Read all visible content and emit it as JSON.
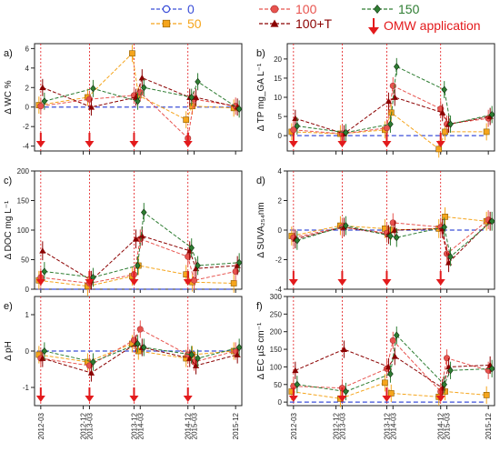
{
  "legend": {
    "items": [
      {
        "label": "0",
        "color": "#3b4fd8",
        "marker": "circle-open",
        "line": "dashed"
      },
      {
        "label": "50",
        "color": "#f5a51c",
        "marker": "square",
        "line": "dashed"
      },
      {
        "label": "100",
        "color": "#e8534e",
        "marker": "circle",
        "line": "dashed"
      },
      {
        "label": "100+T",
        "color": "#8b0000",
        "marker": "triangle",
        "line": "dashed"
      },
      {
        "label": "150",
        "color": "#2e7d32",
        "marker": "diamond",
        "line": "dashed"
      }
    ],
    "arrow_label": "OMW application",
    "arrow_color": "#e31a1c"
  },
  "chart_data": [
    {
      "type": "line",
      "panel": "a)",
      "ylabel": "Δ WC %",
      "ylim": [
        -4.5,
        6.5
      ],
      "yticks": [
        -4,
        -2,
        0,
        2,
        4,
        6
      ],
      "x_categories": [
        "2012-03",
        "2013-03",
        "2013-12",
        "2014-03",
        "2014-12",
        "2015-03",
        "2015-12"
      ],
      "series": [
        {
          "name": "0",
          "values": [
            0,
            0,
            0,
            0,
            0,
            0,
            0
          ]
        },
        {
          "name": "50",
          "values": [
            0.2,
            1.0,
            5.5,
            1.2,
            -1.3,
            0.1,
            -0.1
          ]
        },
        {
          "name": "100",
          "values": [
            0.1,
            0.8,
            1.2,
            1.5,
            -3.2,
            0.8,
            0.1
          ]
        },
        {
          "name": "100+T",
          "values": [
            2.0,
            0.0,
            1.0,
            3.0,
            1.0,
            1.0,
            0.0
          ]
        },
        {
          "name": "150",
          "values": [
            0.6,
            1.9,
            0.6,
            2.0,
            1.0,
            2.6,
            -0.2
          ]
        }
      ]
    },
    {
      "type": "line",
      "panel": "b)",
      "ylabel": "Δ TP mg_GA L⁻¹",
      "ylim": [
        -4,
        24
      ],
      "yticks": [
        0,
        5,
        10,
        15,
        20
      ],
      "x_categories": [
        "2012-03",
        "2013-03",
        "2013-12",
        "2014-03",
        "2014-12",
        "2015-03",
        "2015-12"
      ],
      "series": [
        {
          "name": "0",
          "values": [
            0,
            0,
            0,
            0,
            0,
            0,
            0
          ]
        },
        {
          "name": "50",
          "values": [
            1.0,
            0.5,
            1.5,
            6.0,
            -3.5,
            1.0,
            1.0
          ]
        },
        {
          "name": "100",
          "values": [
            1.5,
            0.5,
            2.0,
            13.0,
            7.0,
            3.0,
            4.5
          ]
        },
        {
          "name": "100+T",
          "values": [
            4.5,
            0.5,
            9.0,
            10.0,
            6.0,
            3.0,
            5.0
          ]
        },
        {
          "name": "150",
          "values": [
            2.5,
            0.8,
            3.0,
            18.0,
            12.0,
            3.0,
            5.5
          ]
        }
      ]
    },
    {
      "type": "line",
      "panel": "c)",
      "ylabel": "Δ DOC mg L⁻¹",
      "ylim": [
        0,
        200
      ],
      "yticks": [
        0,
        50,
        100,
        150,
        200
      ],
      "x_categories": [
        "2012-03",
        "2013-03",
        "2013-12",
        "2014-03",
        "2014-12",
        "2015-03",
        "2015-12"
      ],
      "series": [
        {
          "name": "0",
          "values": [
            0,
            0,
            0,
            0,
            0,
            0,
            0
          ]
        },
        {
          "name": "50",
          "values": [
            15,
            5,
            22,
            40,
            25,
            12,
            10
          ]
        },
        {
          "name": "100",
          "values": [
            20,
            10,
            25,
            85,
            55,
            15,
            30
          ]
        },
        {
          "name": "100+T",
          "values": [
            65,
            15,
            85,
            90,
            65,
            35,
            40
          ]
        },
        {
          "name": "150",
          "values": [
            30,
            20,
            40,
            130,
            70,
            40,
            45
          ]
        }
      ]
    },
    {
      "type": "line",
      "panel": "d)",
      "ylabel": "Δ SUVA₂₅₄nm",
      "ylim": [
        -4,
        4
      ],
      "yticks": [
        -4,
        -2,
        0,
        2,
        4
      ],
      "x_categories": [
        "2012-03",
        "2013-03",
        "2013-12",
        "2014-03",
        "2014-12",
        "2015-03",
        "2015-12"
      ],
      "series": [
        {
          "name": "0",
          "values": [
            0,
            0,
            0,
            0,
            0,
            0,
            0
          ]
        },
        {
          "name": "50",
          "values": [
            -0.4,
            0.3,
            0.1,
            0.0,
            0.1,
            0.9,
            0.6
          ]
        },
        {
          "name": "100",
          "values": [
            -0.5,
            0.2,
            -0.2,
            0.5,
            0.2,
            -1.6,
            0.7
          ]
        },
        {
          "name": "100+T",
          "values": [
            -0.6,
            0.2,
            -0.3,
            0.0,
            0.1,
            -2.2,
            0.6
          ]
        },
        {
          "name": "150",
          "values": [
            -0.7,
            0.3,
            -0.4,
            -0.5,
            0.2,
            -1.8,
            0.6
          ]
        }
      ]
    },
    {
      "type": "line",
      "panel": "e)",
      "ylabel": "Δ pH",
      "ylim": [
        -1.5,
        1.5
      ],
      "yticks": [
        -1,
        0,
        1
      ],
      "x_categories": [
        "2012-03",
        "2013-03",
        "2013-12",
        "2014-03",
        "2014-12",
        "2015-03",
        "2015-12"
      ],
      "series": [
        {
          "name": "0",
          "values": [
            0,
            0,
            0,
            0,
            0,
            0,
            0
          ]
        },
        {
          "name": "50",
          "values": [
            -0.1,
            -0.3,
            0.2,
            0.0,
            -0.2,
            -0.1,
            0.0
          ]
        },
        {
          "name": "100",
          "values": [
            -0.2,
            -0.4,
            0.3,
            0.6,
            -0.1,
            -0.3,
            0.0
          ]
        },
        {
          "name": "100+T",
          "values": [
            -0.2,
            -0.6,
            0.2,
            0.1,
            -0.2,
            -0.4,
            -0.1
          ]
        },
        {
          "name": "150",
          "values": [
            0.0,
            -0.3,
            0.2,
            0.1,
            -0.1,
            -0.2,
            0.1
          ]
        }
      ]
    },
    {
      "type": "line",
      "panel": "f)",
      "ylabel": "Δ EC µS cm⁻¹",
      "ylim": [
        -10,
        300
      ],
      "yticks": [
        0,
        50,
        100,
        150,
        200,
        250,
        300
      ],
      "x_categories": [
        "2012-03",
        "2013-03",
        "2013-12",
        "2014-03",
        "2014-12",
        "2015-03",
        "2015-12"
      ],
      "series": [
        {
          "name": "0",
          "values": [
            0,
            0,
            0,
            0,
            0,
            0,
            0
          ]
        },
        {
          "name": "50",
          "values": [
            30,
            10,
            55,
            25,
            15,
            30,
            20
          ]
        },
        {
          "name": "100",
          "values": [
            45,
            40,
            95,
            175,
            30,
            125,
            90
          ]
        },
        {
          "name": "100+T",
          "values": [
            90,
            150,
            100,
            130,
            40,
            100,
            105
          ]
        },
        {
          "name": "150",
          "values": [
            50,
            30,
            80,
            190,
            50,
            90,
            95
          ]
        }
      ]
    }
  ],
  "x_tick_labels": [
    "2012-03",
    "2012-12",
    "2013-03",
    "2013-12",
    "2014-03",
    "2014-12",
    "2015-03",
    "2015-12"
  ]
}
